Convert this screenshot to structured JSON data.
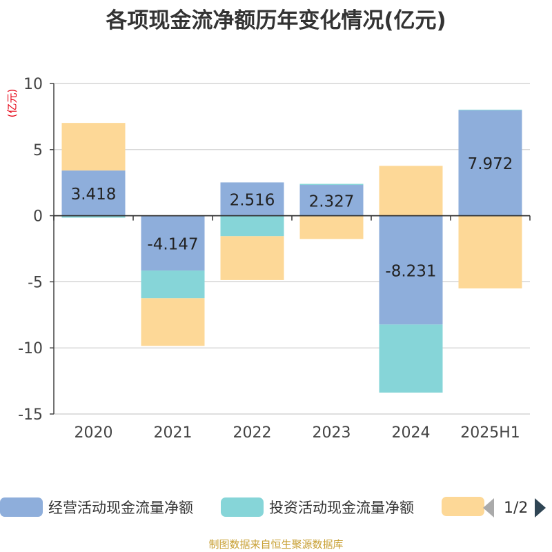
{
  "title": "各项现金流净额历年变化情况(亿元)",
  "unit_label": "(亿元)",
  "source": "制图数据来自恒生聚源数据库",
  "legend": {
    "page": "1/2"
  },
  "colors": {
    "operating": "#8eaedb",
    "investing": "#86d5d8",
    "financing": "#fdd897",
    "unit": "#e60012",
    "source": "#c8a034"
  },
  "chart_data": {
    "type": "bar",
    "stacked": true,
    "categories": [
      "2020",
      "2021",
      "2022",
      "2023",
      "2024",
      "2025H1"
    ],
    "ylim": [
      -15,
      10
    ],
    "yticks": [
      10,
      5,
      0,
      -5,
      -10,
      -15
    ],
    "ytick_labels": [
      "10",
      "5",
      "0",
      "-5",
      "-10",
      "-15"
    ],
    "series": [
      {
        "name": "经营活动现金流量净额",
        "values": [
          3.418,
          -4.147,
          2.516,
          2.327,
          -8.231,
          7.972
        ],
        "labels": [
          "3.418",
          "-4.147",
          "2.516",
          "2.327",
          "-8.231",
          "7.972"
        ]
      },
      {
        "name": "投资活动现金流量净额",
        "values": [
          -0.15,
          -2.1,
          -1.55,
          0.08,
          -5.15,
          0.05
        ]
      },
      {
        "name": "",
        "values": [
          3.6,
          -3.6,
          -3.32,
          -1.76,
          3.77,
          -5.5
        ]
      }
    ],
    "grid": true,
    "legend_position": "bottom"
  }
}
